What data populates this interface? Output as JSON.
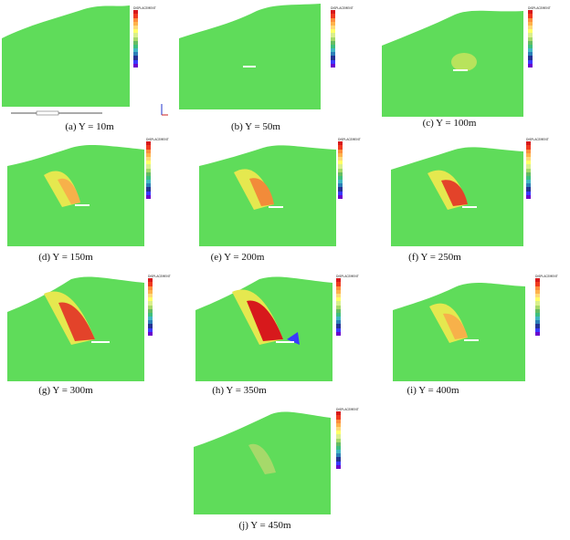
{
  "figure": {
    "panels": [
      {
        "id": "a",
        "caption": "(a) Y = 10m",
        "legend_title": "DISPLACEMENT"
      },
      {
        "id": "b",
        "caption": "(b) Y = 50m",
        "legend_title": "DISPLACEMENT"
      },
      {
        "id": "c",
        "caption": "(c) Y = 100m",
        "legend_title": "DISPLACEMENT"
      },
      {
        "id": "d",
        "caption": "(d) Y = 150m",
        "legend_title": "DISPLACEMENT"
      },
      {
        "id": "e",
        "caption": "(e) Y = 200m",
        "legend_title": "DISPLACEMENT"
      },
      {
        "id": "f",
        "caption": "(f) Y = 250m",
        "legend_title": "DISPLACEMENT"
      },
      {
        "id": "g",
        "caption": "(g) Y = 300m",
        "legend_title": "DISPLACEMENT"
      },
      {
        "id": "h",
        "caption": "(h) Y = 350m",
        "legend_title": "DISPLACEMENT"
      },
      {
        "id": "i",
        "caption": "(i) Y = 400m",
        "legend_title": "DISPLACEMENT"
      },
      {
        "id": "j",
        "caption": "(j) Y = 450m",
        "legend_title": "DISPLACEMENT"
      }
    ],
    "legend_colors": [
      "#d7191c",
      "#f03b20",
      "#fd8d3c",
      "#feb24c",
      "#fed976",
      "#ffff66",
      "#d9ef8b",
      "#a6d96a",
      "#66bd63",
      "#3fbf7f",
      "#41b6c4",
      "#2c7fb8",
      "#253494",
      "#3a3aff",
      "#6a00cc"
    ]
  }
}
